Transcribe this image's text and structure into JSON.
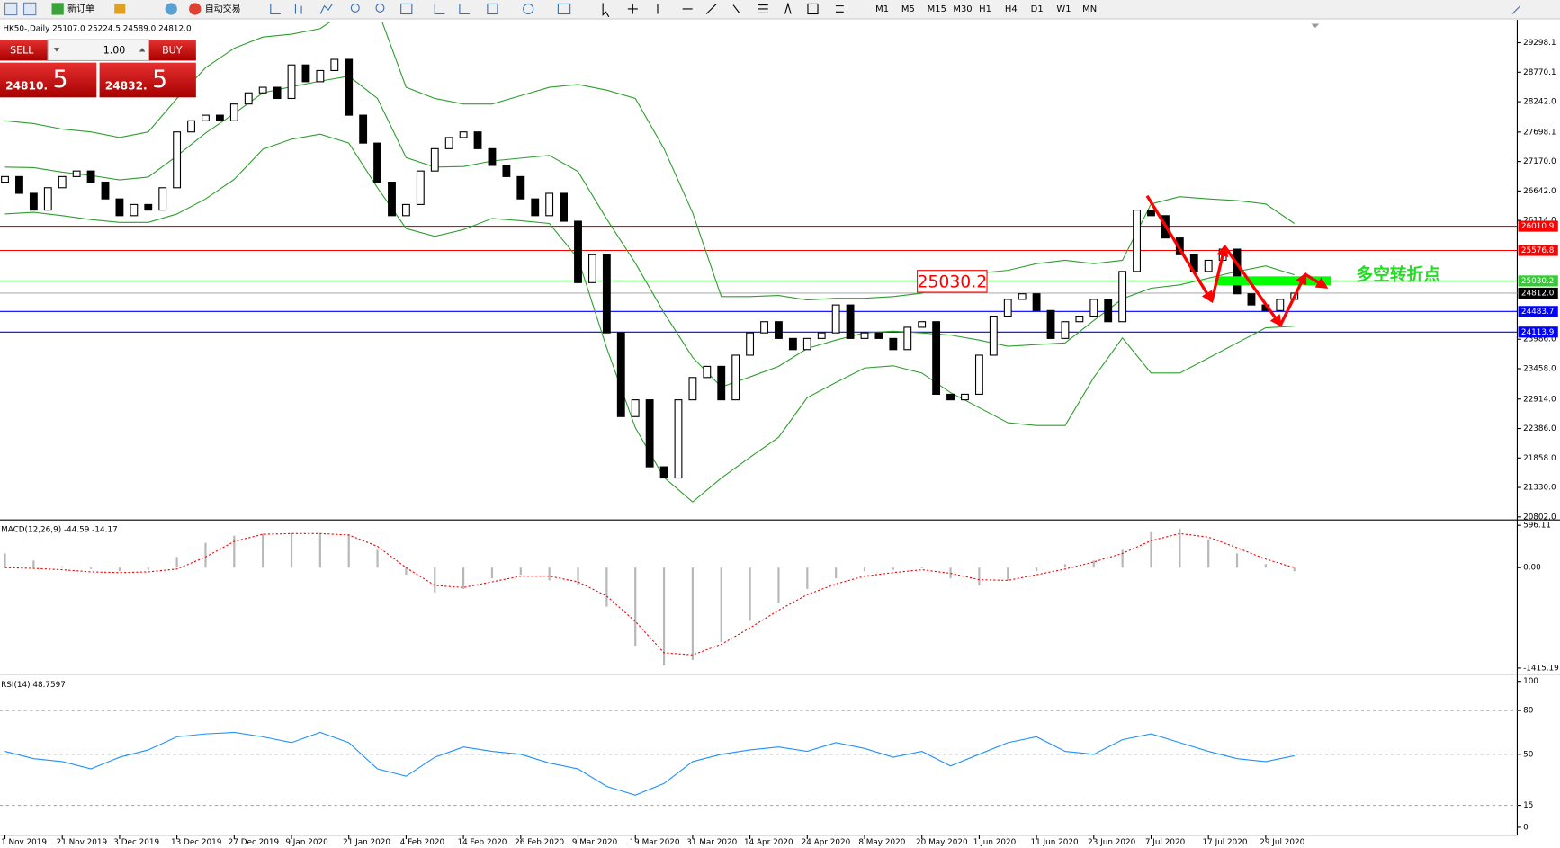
{
  "toolbar": {
    "new_order": "新订单",
    "auto_trading": "自动交易",
    "timeframes": [
      "M1",
      "M5",
      "M15",
      "M30",
      "H1",
      "H4",
      "D1",
      "W1",
      "MN"
    ]
  },
  "trade_panel": {
    "sell": "SELL",
    "buy": "BUY",
    "lots": "1.00",
    "bid_main": "24810.",
    "bid_big": "5",
    "ask_main": "24832.",
    "ask_big": "5"
  },
  "chart": {
    "info": "HK50-,Daily  25107.0 25224.5 24589.0 24812.0",
    "ylim": [
      20766,
      29672
    ],
    "yticks": [
      29298.1,
      28770.1,
      {
        "value": 28242,
        "label": "28242.0"
      },
      27698.1,
      {
        "value": 27170,
        "label": "27170.0"
      },
      {
        "value": 26642,
        "label": "26642.0"
      },
      {
        "value": 26114,
        "label": "26114.0"
      },
      {
        "value": 23986,
        "label": "23986.0"
      },
      {
        "value": 23458,
        "label": "23458.0"
      },
      {
        "value": 22914,
        "label": "22914.0"
      },
      {
        "value": 22386,
        "label": "22386.0"
      },
      {
        "value": 21858,
        "label": "21858.0"
      },
      {
        "value": 21330,
        "label": "21330.0"
      },
      {
        "value": 20802,
        "label": "20802.0"
      }
    ],
    "levels": [
      {
        "value": 26010.9,
        "color": "#ff0000"
      },
      {
        "value": 25576.8,
        "color": "#ff0000"
      },
      {
        "value": 25030.2,
        "color": "#33cc33"
      },
      {
        "value": 24812,
        "label": "24812.0",
        "color": "#000000"
      },
      {
        "value": 24483.7,
        "color": "#0000ff"
      },
      {
        "value": 24113.9,
        "color": "#0000ff"
      }
    ],
    "level_label": 25030.2,
    "annotation": "多空转折点",
    "dates": [
      "1 Nov 2019",
      "21 Nov 2019",
      "3 Dec 2019",
      "13 Dec 2019",
      "27 Dec 2019",
      "9 Jan 2020",
      "21 Jan 2020",
      "4 Feb 2020",
      "14 Feb 2020",
      "26 Feb 2020",
      "9 Mar 2020",
      "19 Mar 2020",
      "31 Mar 2020",
      "14 Apr 2020",
      "24 Apr 2020",
      "8 May 2020",
      "20 May 2020",
      "1 Jun 2020",
      "11 Jun 2020",
      "23 Jun 2020",
      "7 Jul 2020",
      "17 Jul 2020",
      "29 Jul 2020"
    ],
    "first_open": 26800,
    "closes": [
      26900,
      26600,
      26300,
      26700,
      26900,
      27000,
      26800,
      26500,
      26200,
      26400,
      26300,
      26700,
      27700,
      27900,
      28000,
      27900,
      28200,
      28400,
      28500,
      28300,
      28900,
      28600,
      28800,
      29000,
      28000,
      27500,
      26800,
      26200,
      26400,
      27000,
      27400,
      27600,
      27700,
      27400,
      27100,
      26900,
      26500,
      26200,
      26600,
      26100,
      25000,
      25500,
      24100,
      22600,
      22900,
      21700,
      21500,
      22900,
      23300,
      23500,
      22900,
      23700,
      24100,
      24300,
      24000,
      23800,
      24000,
      24100,
      24600,
      24000,
      24100,
      24000,
      23800,
      24200,
      24300,
      23000,
      22900,
      23000,
      23700,
      24400,
      24700,
      24800,
      24500,
      24000,
      24300,
      24400,
      24700,
      24300,
      25200,
      26300,
      26200,
      25800,
      25500,
      25200,
      25400,
      25600,
      24800,
      24600,
      24500,
      24700,
      24812
    ],
    "bands": {
      "color": "#2e9e2e",
      "upper": [
        27900,
        27850,
        27750,
        27700,
        27600,
        27700,
        28300,
        28850,
        29200,
        29400,
        29450,
        29550,
        29900,
        29900,
        28500,
        28300,
        28200,
        28200,
        28350,
        28500,
        28550,
        28450,
        28300,
        27400,
        26250,
        24750,
        24750,
        24770,
        24690,
        24720,
        24720,
        24750,
        24810,
        25080,
        25170,
        25220,
        25340,
        25400,
        25340,
        25400,
        26410,
        26540,
        26500,
        26470,
        26410,
        26060
      ],
      "middle": [
        27070,
        27060,
        26980,
        26920,
        26840,
        26890,
        27270,
        27680,
        28030,
        28400,
        28510,
        28610,
        28700,
        28300,
        27240,
        27070,
        27080,
        27180,
        27230,
        27280,
        26990,
        26140,
        25350,
        24460,
        23660,
        23130,
        23310,
        23500,
        23820,
        23970,
        24100,
        24130,
        24100,
        24060,
        23970,
        23860,
        23890,
        23920,
        24320,
        24710,
        24900,
        24960,
        25080,
        25200,
        25300,
        25140
      ],
      "lower": [
        26230,
        26260,
        26200,
        26130,
        26080,
        26080,
        26230,
        26500,
        26850,
        27390,
        27570,
        27660,
        27500,
        26700,
        25970,
        25830,
        25950,
        26150,
        26110,
        26060,
        25430,
        23830,
        22400,
        21510,
        21070,
        21500,
        21870,
        22230,
        22940,
        23210,
        23470,
        23510,
        23380,
        23030,
        22760,
        22490,
        22440,
        22440,
        23300,
        24010,
        23380,
        23380,
        23650,
        23920,
        24190,
        24220
      ]
    }
  },
  "macd": {
    "label": "MACD(12,26,9) -44.59 -14.17",
    "ylim": [
      -1485,
      630
    ],
    "yticks": [
      596.11,
      {
        "value": 0,
        "label": "0.00"
      },
      -1415.19
    ],
    "histogram": [
      200,
      100,
      20,
      -20,
      -50,
      -30,
      150,
      350,
      450,
      480,
      480,
      480,
      470,
      250,
      -100,
      -350,
      -300,
      -150,
      -100,
      -180,
      -250,
      -550,
      -1100,
      -1380,
      -1300,
      -1050,
      -750,
      -500,
      -300,
      -150,
      -50,
      -30,
      -10,
      -150,
      -250,
      -180,
      -50,
      50,
      100,
      250,
      500,
      550,
      400,
      200,
      50,
      -50
    ],
    "signal": [
      0,
      -10,
      -30,
      -60,
      -70,
      -60,
      -20,
      150,
      370,
      470,
      480,
      480,
      460,
      300,
      0,
      -250,
      -280,
      -200,
      -120,
      -120,
      -200,
      -400,
      -760,
      -1200,
      -1230,
      -1080,
      -850,
      -600,
      -380,
      -230,
      -120,
      -70,
      -30,
      -80,
      -170,
      -180,
      -100,
      -20,
      80,
      200,
      380,
      480,
      430,
      280,
      120,
      0
    ]
  },
  "rsi": {
    "label": "RSI(14) 48.7597",
    "ylim": [
      -4,
      103
    ],
    "yticks": [
      100,
      80,
      50,
      15,
      0
    ],
    "levels": [
      80,
      50,
      15
    ],
    "values": [
      52,
      47,
      45,
      40,
      48,
      53,
      62,
      64,
      65,
      62,
      58,
      65,
      58,
      40,
      35,
      48,
      55,
      52,
      50,
      44,
      40,
      28,
      22,
      30,
      45,
      50,
      53,
      55,
      52,
      58,
      54,
      48,
      52,
      42,
      50,
      58,
      62,
      52,
      50,
      60,
      64,
      58,
      52,
      47,
      45,
      49
    ]
  }
}
